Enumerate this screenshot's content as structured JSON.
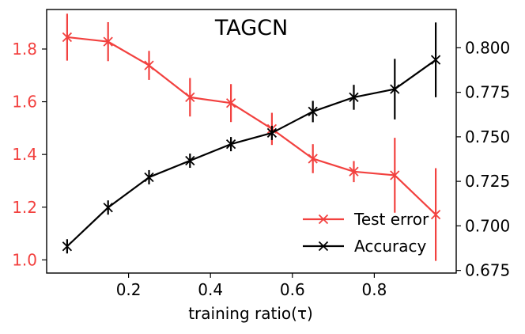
{
  "chart_data": {
    "type": "line",
    "title": "TAGCN",
    "xlabel": "training ratio(τ)",
    "ylabel_left": "",
    "ylabel_right": "",
    "xlim": [
      0.0,
      1.0
    ],
    "ylim_left": [
      0.95,
      1.95
    ],
    "ylim_right": [
      0.6735,
      0.8215
    ],
    "x_ticks": [
      0.2,
      0.4,
      0.6,
      0.8
    ],
    "x_tick_labels": [
      "0.2",
      "0.4",
      "0.6",
      "0.8"
    ],
    "y_left_ticks": [
      1.0,
      1.2,
      1.4,
      1.6,
      1.8
    ],
    "y_left_tick_labels": [
      "1.0",
      "1.2",
      "1.4",
      "1.6",
      "1.8"
    ],
    "y_right_ticks": [
      0.675,
      0.7,
      0.725,
      0.75,
      0.775,
      0.8
    ],
    "y_right_tick_labels": [
      "0.675",
      "0.700",
      "0.725",
      "0.750",
      "0.775",
      "0.800"
    ],
    "grid": false,
    "legend_position": "lower-right",
    "x": [
      0.05,
      0.15,
      0.25,
      0.35,
      0.45,
      0.55,
      0.65,
      0.75,
      0.85,
      0.95
    ],
    "series": [
      {
        "name": "Test error",
        "axis": "left",
        "color": "#f2413f",
        "marker": "x",
        "values": [
          1.845,
          1.828,
          1.738,
          1.617,
          1.595,
          1.497,
          1.384,
          1.335,
          1.321,
          1.172
        ],
        "errors": [
          0.089,
          0.074,
          0.055,
          0.073,
          0.072,
          0.061,
          0.055,
          0.04,
          0.142,
          0.176
        ]
      },
      {
        "name": "Accuracy",
        "axis": "right",
        "color": "#000000",
        "marker": "x",
        "values": [
          0.6885,
          0.7103,
          0.7273,
          0.7366,
          0.7459,
          0.7522,
          0.7642,
          0.7722,
          0.7768,
          0.7932
        ],
        "errors": [
          0.004,
          0.004,
          0.004,
          0.004,
          0.004,
          0.004,
          0.006,
          0.007,
          0.017,
          0.021
        ]
      }
    ]
  }
}
